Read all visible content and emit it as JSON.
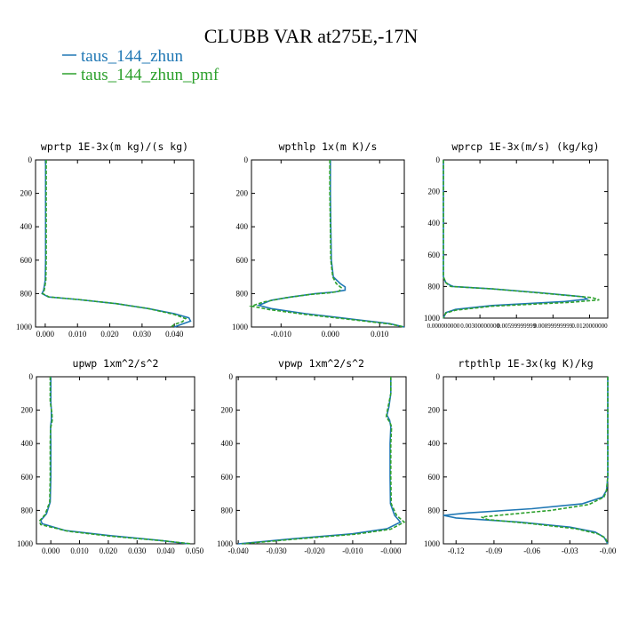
{
  "figure": {
    "title": "CLUBB VAR at275E,-17N",
    "legend": [
      {
        "label": "taus_144_zhun",
        "color": "#1f77b4",
        "dash": "solid"
      },
      {
        "label": "taus_144_zhun_pmf",
        "color": "#2ca02c",
        "dash": "dashed"
      }
    ]
  },
  "chart_data": [
    {
      "type": "line",
      "title": "wprtp  1E-3x(m kg)/(s kg)",
      "xlim": [
        -0.003,
        0.046
      ],
      "ylim": [
        1000,
        0
      ],
      "x_ticks": [
        0.0,
        0.01,
        0.02,
        0.03,
        0.04
      ],
      "x_tick_labels": [
        "0.000",
        "0.010",
        "0.020",
        "0.030",
        "0.040"
      ],
      "y_ticks": [
        0,
        200,
        400,
        600,
        800,
        1000
      ],
      "y_tick_labels": [
        "0",
        "200",
        "400",
        "600",
        "800",
        "1000"
      ],
      "series": [
        {
          "color": "#1f77b4",
          "dash": "solid",
          "points": [
            [
              0.0001,
              0
            ],
            [
              0.0001,
              200
            ],
            [
              0.0001,
              600
            ],
            [
              0.0,
              720
            ],
            [
              -0.0005,
              780
            ],
            [
              -0.001,
              800
            ],
            [
              0.001,
              820
            ],
            [
              0.01,
              835
            ],
            [
              0.022,
              860
            ],
            [
              0.032,
              890
            ],
            [
              0.04,
              920
            ],
            [
              0.0445,
              945
            ],
            [
              0.045,
              965
            ],
            [
              0.042,
              985
            ],
            [
              0.04,
              1000
            ]
          ]
        },
        {
          "color": "#2ca02c",
          "dash": "dashed",
          "points": [
            [
              0.0003,
              0
            ],
            [
              0.0003,
              200
            ],
            [
              0.0003,
              600
            ],
            [
              0.0002,
              720
            ],
            [
              -0.0003,
              780
            ],
            [
              -0.0008,
              800
            ],
            [
              0.0012,
              820
            ],
            [
              0.01,
              835
            ],
            [
              0.022,
              860
            ],
            [
              0.032,
              890
            ],
            [
              0.04,
              925
            ],
            [
              0.0435,
              950
            ],
            [
              0.0425,
              968
            ],
            [
              0.04,
              985
            ],
            [
              0.039,
              1000
            ]
          ]
        }
      ]
    },
    {
      "type": "line",
      "title": "wpthlp  1x(m K)/s",
      "xlim": [
        -0.016,
        0.015
      ],
      "ylim": [
        1000,
        0
      ],
      "x_ticks": [
        -0.01,
        0.0,
        0.01
      ],
      "x_tick_labels": [
        "-0.010",
        "0.000",
        "0.010"
      ],
      "y_ticks": [
        0,
        200,
        400,
        600,
        800,
        1000
      ],
      "y_tick_labels": [
        "0",
        "200",
        "400",
        "600",
        "800",
        "1000"
      ],
      "series": [
        {
          "color": "#1f77b4",
          "dash": "solid",
          "points": [
            [
              0.0,
              0
            ],
            [
              0.0,
              200
            ],
            [
              0.0001,
              400
            ],
            [
              0.0002,
              600
            ],
            [
              0.0006,
              700
            ],
            [
              0.002,
              740
            ],
            [
              0.003,
              760
            ],
            [
              0.003,
              780
            ],
            [
              0.001,
              790
            ],
            [
              -0.003,
              800
            ],
            [
              -0.008,
              820
            ],
            [
              -0.012,
              840
            ],
            [
              -0.0145,
              870
            ],
            [
              -0.012,
              890
            ],
            [
              -0.005,
              920
            ],
            [
              0.005,
              955
            ],
            [
              0.012,
              980
            ],
            [
              0.015,
              1000
            ]
          ]
        },
        {
          "color": "#2ca02c",
          "dash": "dashed",
          "points": [
            [
              -0.0001,
              0
            ],
            [
              -0.0001,
              200
            ],
            [
              0.0,
              400
            ],
            [
              0.0001,
              600
            ],
            [
              0.0005,
              700
            ],
            [
              0.0012,
              740
            ],
            [
              0.0022,
              765
            ],
            [
              0.0018,
              785
            ],
            [
              0.0,
              795
            ],
            [
              -0.004,
              805
            ],
            [
              -0.009,
              825
            ],
            [
              -0.0135,
              850
            ],
            [
              -0.016,
              875
            ],
            [
              -0.0125,
              895
            ],
            [
              -0.005,
              925
            ],
            [
              0.005,
              958
            ],
            [
              0.012,
              982
            ],
            [
              0.015,
              1000
            ]
          ]
        }
      ]
    },
    {
      "type": "line",
      "title": "wprcp  1E-3x(m/s) (kg/kg)",
      "xlim": [
        0.0,
        0.0135
      ],
      "ylim": [
        1000,
        0
      ],
      "x_ticks": [
        0.0,
        0.003,
        0.006,
        0.009,
        0.012
      ],
      "x_tick_labels": [
        "0.000000000",
        "0.00300000000",
        "0.00599999999",
        "0.00899999999",
        "0.0120000000"
      ],
      "y_ticks": [
        0,
        200,
        400,
        600,
        800,
        1000
      ],
      "y_tick_labels": [
        "0",
        "200",
        "400",
        "600",
        "800",
        "1000"
      ],
      "series": [
        {
          "color": "#1f77b4",
          "dash": "solid",
          "points": [
            [
              0.0,
              0
            ],
            [
              0.0,
              600
            ],
            [
              0.0,
              740
            ],
            [
              0.0002,
              775
            ],
            [
              0.0005,
              790
            ],
            [
              0.0008,
              800
            ],
            [
              0.004,
              815
            ],
            [
              0.008,
              840
            ],
            [
              0.0115,
              865
            ],
            [
              0.0118,
              880
            ],
            [
              0.01,
              895
            ],
            [
              0.004,
              920
            ],
            [
              0.001,
              945
            ],
            [
              0.0002,
              965
            ],
            [
              0.0,
              1000
            ]
          ]
        },
        {
          "color": "#2ca02c",
          "dash": "dashed",
          "points": [
            [
              0.0,
              0
            ],
            [
              0.0,
              600
            ],
            [
              0.0,
              740
            ],
            [
              0.0002,
              775
            ],
            [
              0.0004,
              790
            ],
            [
              0.0006,
              800
            ],
            [
              0.004,
              815
            ],
            [
              0.0085,
              845
            ],
            [
              0.0122,
              870
            ],
            [
              0.0128,
              885
            ],
            [
              0.0105,
              900
            ],
            [
              0.004,
              925
            ],
            [
              0.001,
              950
            ],
            [
              0.0002,
              968
            ],
            [
              0.0,
              1000
            ]
          ]
        }
      ]
    },
    {
      "type": "line",
      "title": "upwp  1xm^2/s^2",
      "xlim": [
        -0.005,
        0.05
      ],
      "ylim": [
        1000,
        0
      ],
      "x_ticks": [
        0.0,
        0.01,
        0.02,
        0.03,
        0.04,
        0.05
      ],
      "x_tick_labels": [
        "0.000",
        "0.010",
        "0.020",
        "0.030",
        "0.040",
        "0.050"
      ],
      "y_ticks": [
        0,
        200,
        400,
        600,
        800,
        1000
      ],
      "y_tick_labels": [
        "0",
        "200",
        "400",
        "600",
        "800",
        "1000"
      ],
      "series": [
        {
          "color": "#1f77b4",
          "dash": "solid",
          "points": [
            [
              0.0,
              0
            ],
            [
              0.0,
              150
            ],
            [
              0.0002,
              200
            ],
            [
              0.0002,
              260
            ],
            [
              -0.0001,
              300
            ],
            [
              0.0,
              400
            ],
            [
              0.0,
              600
            ],
            [
              -0.0002,
              750
            ],
            [
              -0.0015,
              820
            ],
            [
              -0.0035,
              860
            ],
            [
              -0.003,
              880
            ],
            [
              0.005,
              920
            ],
            [
              0.02,
              950
            ],
            [
              0.038,
              980
            ],
            [
              0.048,
              1000
            ]
          ]
        },
        {
          "color": "#2ca02c",
          "dash": "dashed",
          "points": [
            [
              -0.0002,
              0
            ],
            [
              -0.0002,
              150
            ],
            [
              0.0004,
              220
            ],
            [
              0.0005,
              260
            ],
            [
              -0.0001,
              310
            ],
            [
              -0.0002,
              400
            ],
            [
              -0.0002,
              600
            ],
            [
              -0.0004,
              750
            ],
            [
              -0.002,
              825
            ],
            [
              -0.004,
              865
            ],
            [
              -0.0035,
              885
            ],
            [
              0.006,
              925
            ],
            [
              0.021,
              955
            ],
            [
              0.039,
              982
            ],
            [
              0.049,
              1000
            ]
          ]
        }
      ]
    },
    {
      "type": "line",
      "title": "vpwp  1xm^2/s^2",
      "xlim": [
        -0.0405,
        0.004
      ],
      "ylim": [
        1000,
        0
      ],
      "x_ticks": [
        -0.04,
        -0.03,
        -0.02,
        -0.01,
        0.0
      ],
      "x_tick_labels": [
        "-0.040",
        "-0.030",
        "-0.020",
        "-0.010",
        "-0.000"
      ],
      "y_ticks": [
        0,
        200,
        400,
        600,
        800,
        1000
      ],
      "y_tick_labels": [
        "0",
        "200",
        "400",
        "600",
        "800",
        "1000"
      ],
      "series": [
        {
          "color": "#1f77b4",
          "dash": "solid",
          "points": [
            [
              0.0,
              0
            ],
            [
              0.0,
              100
            ],
            [
              -0.0005,
              180
            ],
            [
              -0.001,
              230
            ],
            [
              -0.0003,
              260
            ],
            [
              0.0,
              300
            ],
            [
              -0.0002,
              400
            ],
            [
              -0.0002,
              600
            ],
            [
              -0.0001,
              760
            ],
            [
              0.001,
              830
            ],
            [
              0.0025,
              870
            ],
            [
              -0.001,
              910
            ],
            [
              -0.01,
              940
            ],
            [
              -0.026,
              970
            ],
            [
              -0.04,
              1000
            ]
          ]
        },
        {
          "color": "#2ca02c",
          "dash": "dashed",
          "points": [
            [
              0.0,
              0
            ],
            [
              0.0,
              100
            ],
            [
              -0.0008,
              190
            ],
            [
              -0.0012,
              240
            ],
            [
              -0.0002,
              275
            ],
            [
              0.0002,
              300
            ],
            [
              0.0,
              400
            ],
            [
              0.0,
              600
            ],
            [
              0.0001,
              760
            ],
            [
              0.0015,
              830
            ],
            [
              0.0035,
              870
            ],
            [
              0.0,
              912
            ],
            [
              -0.009,
              942
            ],
            [
              -0.025,
              972
            ],
            [
              -0.039,
              1000
            ]
          ]
        }
      ]
    },
    {
      "type": "line",
      "title": "rtpthlp  1E-3x(kg K)/kg",
      "xlim": [
        -0.13,
        0.0
      ],
      "ylim": [
        1000,
        0
      ],
      "x_ticks": [
        -0.12,
        -0.09,
        -0.06,
        -0.03,
        0.0
      ],
      "x_tick_labels": [
        "-0.12",
        "-0.09",
        "-0.06",
        "-0.03",
        "-0.00"
      ],
      "y_ticks": [
        0,
        200,
        400,
        600,
        800,
        1000
      ],
      "y_tick_labels": [
        "0",
        "200",
        "400",
        "600",
        "800",
        "1000"
      ],
      "series": [
        {
          "color": "#1f77b4",
          "dash": "solid",
          "points": [
            [
              0.0,
              0
            ],
            [
              0.0,
              600
            ],
            [
              -0.001,
              680
            ],
            [
              -0.004,
              720
            ],
            [
              -0.02,
              760
            ],
            [
              -0.06,
              790
            ],
            [
              -0.11,
              815
            ],
            [
              -0.13,
              830
            ],
            [
              -0.12,
              845
            ],
            [
              -0.07,
              870
            ],
            [
              -0.03,
              900
            ],
            [
              -0.01,
              930
            ],
            [
              -0.003,
              960
            ],
            [
              0.0,
              1000
            ]
          ]
        },
        {
          "color": "#2ca02c",
          "dash": "dashed",
          "points": [
            [
              0.0,
              0
            ],
            [
              0.0,
              600
            ],
            [
              -0.001,
              680
            ],
            [
              -0.003,
              720
            ],
            [
              -0.015,
              765
            ],
            [
              -0.045,
              800
            ],
            [
              -0.08,
              825
            ],
            [
              -0.1,
              840
            ],
            [
              -0.095,
              855
            ],
            [
              -0.06,
              880
            ],
            [
              -0.025,
              910
            ],
            [
              -0.008,
              940
            ],
            [
              -0.002,
              965
            ],
            [
              0.0,
              1000
            ]
          ]
        }
      ]
    }
  ]
}
